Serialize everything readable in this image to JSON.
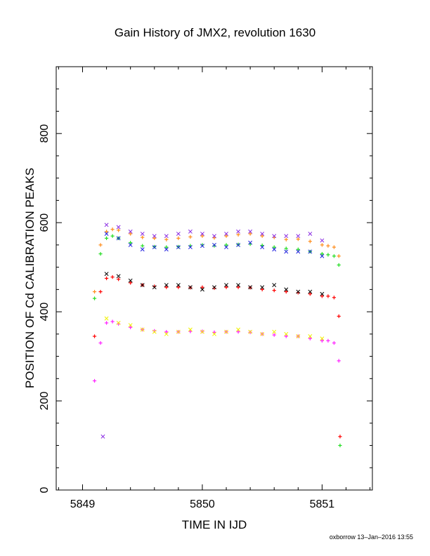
{
  "chart_data": {
    "type": "scatter",
    "title": "Gain History of JMX2, revolution 1630",
    "xlabel": "TIME IN IJD",
    "ylabel": "POSITION OF Cd CALIBRATION PEAKS",
    "xlim": [
      5848.78,
      5851.42
    ],
    "ylim": [
      0,
      950
    ],
    "x_ticks": [
      5849,
      5850,
      5851
    ],
    "x_tick_labels": [
      "5849",
      "5850",
      "5851"
    ],
    "y_ticks": [
      0,
      200,
      400,
      600,
      800
    ],
    "y_tick_labels": [
      "0",
      "200",
      "400",
      "600",
      "800"
    ],
    "grid": false,
    "footer": "oxborrow 13–Jan–2016 13:55",
    "colors": {
      "orange": "#ff8c1a",
      "purple": "#8a2be2",
      "blue": "#1f1fe0",
      "green": "#22dd22",
      "red": "#ff0000",
      "black": "#000000",
      "yellow": "#f0f000",
      "magenta": "#ff22ff"
    },
    "series": [
      {
        "color": "orange",
        "marker": "plus",
        "x": [
          5849.1,
          5849.15,
          5849.2,
          5849.25,
          5849.3,
          5849.4,
          5849.5,
          5849.6,
          5849.7,
          5849.8,
          5849.9,
          5850.0,
          5850.1,
          5850.2,
          5850.3,
          5850.4,
          5850.5,
          5850.6,
          5850.7,
          5850.8,
          5850.9,
          5851.0,
          5851.05,
          5851.1,
          5851.14
        ],
        "y": [
          445,
          550,
          580,
          585,
          583,
          575,
          567,
          565,
          562,
          565,
          568,
          570,
          566,
          570,
          573,
          575,
          570,
          567,
          562,
          563,
          558,
          550,
          548,
          545,
          525
        ]
      },
      {
        "color": "green",
        "marker": "plus",
        "x": [
          5849.1,
          5849.15,
          5849.2,
          5849.25,
          5849.3,
          5849.4,
          5849.5,
          5849.6,
          5849.7,
          5849.8,
          5849.9,
          5850.0,
          5850.1,
          5850.2,
          5850.3,
          5850.4,
          5850.5,
          5850.6,
          5850.7,
          5850.8,
          5850.9,
          5851.0,
          5851.05,
          5851.1,
          5851.14
        ],
        "y": [
          430,
          530,
          565,
          570,
          565,
          555,
          548,
          546,
          545,
          546,
          548,
          550,
          548,
          550,
          551,
          552,
          549,
          545,
          542,
          540,
          535,
          530,
          528,
          525,
          505
        ]
      },
      {
        "color": "red",
        "marker": "plus",
        "x": [
          5849.1,
          5849.15,
          5849.2,
          5849.25,
          5849.3,
          5849.4,
          5849.5,
          5849.6,
          5849.7,
          5849.8,
          5849.9,
          5850.0,
          5850.1,
          5850.2,
          5850.3,
          5850.4,
          5850.5,
          5850.6,
          5850.7,
          5850.8,
          5850.9,
          5851.0,
          5851.05,
          5851.1,
          5851.14
        ],
        "y": [
          345,
          445,
          475,
          478,
          473,
          465,
          460,
          457,
          455,
          455,
          454,
          455,
          453,
          455,
          455,
          454,
          450,
          448,
          445,
          443,
          440,
          435,
          435,
          432,
          390
        ]
      },
      {
        "color": "magenta",
        "marker": "plus",
        "x": [
          5849.1,
          5849.15,
          5849.2,
          5849.25,
          5849.3,
          5849.4,
          5849.5,
          5849.6,
          5849.7,
          5849.8,
          5849.9,
          5850.0,
          5850.1,
          5850.2,
          5850.3,
          5850.4,
          5850.5,
          5850.6,
          5850.7,
          5850.8,
          5850.9,
          5851.0,
          5851.05,
          5851.1,
          5851.14
        ],
        "y": [
          245,
          330,
          375,
          378,
          373,
          365,
          360,
          357,
          355,
          355,
          356,
          356,
          354,
          355,
          355,
          354,
          350,
          348,
          345,
          345,
          340,
          335,
          335,
          330,
          290
        ]
      },
      {
        "color": "purple",
        "marker": "cross",
        "x": [
          5849.2,
          5849.3,
          5849.4,
          5849.5,
          5849.6,
          5849.7,
          5849.8,
          5849.9,
          5850.0,
          5850.1,
          5850.2,
          5850.3,
          5850.4,
          5850.5,
          5850.6,
          5850.7,
          5850.8,
          5850.9,
          5851.0
        ],
        "y": [
          595,
          590,
          580,
          575,
          570,
          570,
          575,
          580,
          575,
          570,
          575,
          580,
          580,
          575,
          570,
          570,
          570,
          575,
          560
        ]
      },
      {
        "color": "blue",
        "marker": "cross",
        "x": [
          5849.2,
          5849.3,
          5849.4,
          5849.5,
          5849.6,
          5849.7,
          5849.8,
          5849.9,
          5850.0,
          5850.1,
          5850.2,
          5850.3,
          5850.4,
          5850.5,
          5850.6,
          5850.7,
          5850.8,
          5850.9,
          5851.0
        ],
        "y": [
          575,
          565,
          550,
          540,
          545,
          540,
          545,
          545,
          548,
          550,
          545,
          550,
          555,
          545,
          540,
          535,
          535,
          535,
          525
        ]
      },
      {
        "color": "black",
        "marker": "cross",
        "x": [
          5849.2,
          5849.3,
          5849.4,
          5849.5,
          5849.6,
          5849.7,
          5849.8,
          5849.9,
          5850.0,
          5850.1,
          5850.2,
          5850.3,
          5850.4,
          5850.5,
          5850.6,
          5850.7,
          5850.8,
          5850.9,
          5851.0
        ],
        "y": [
          485,
          480,
          470,
          460,
          455,
          460,
          460,
          455,
          450,
          455,
          460,
          460,
          455,
          455,
          460,
          450,
          445,
          445,
          440
        ]
      },
      {
        "color": "yellow",
        "marker": "cross",
        "x": [
          5849.2,
          5849.3,
          5849.4,
          5849.5,
          5849.6,
          5849.7,
          5849.8,
          5849.9,
          5850.0,
          5850.1,
          5850.2,
          5850.3,
          5850.4,
          5850.5,
          5850.6,
          5850.7,
          5850.8,
          5850.9,
          5851.0
        ],
        "y": [
          385,
          375,
          370,
          360,
          355,
          350,
          355,
          360,
          355,
          350,
          355,
          360,
          355,
          350,
          355,
          350,
          345,
          345,
          340
        ]
      }
    ],
    "isolated_points": [
      {
        "color": "purple",
        "marker": "cross",
        "x": 5849.17,
        "y": 120
      },
      {
        "color": "red",
        "marker": "plus",
        "x": 5851.15,
        "y": 120
      },
      {
        "color": "green",
        "marker": "plus",
        "x": 5851.15,
        "y": 100
      }
    ]
  }
}
